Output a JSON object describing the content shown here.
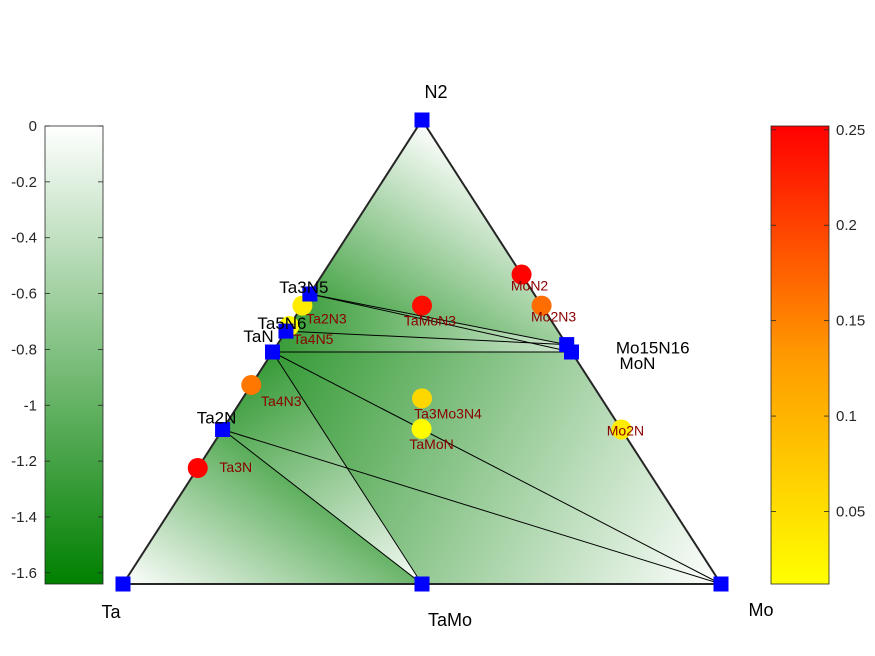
{
  "chart_data": {
    "type": "ternary-phase-diagram",
    "corners": {
      "bottom_left": "Ta",
      "bottom_right": "Mo",
      "top": "N2",
      "bottom_mid": "TaMo"
    },
    "formation_energy_colorbar": {
      "ticks": [
        "0",
        "-0.2",
        "-0.4",
        "-0.6",
        "-0.8",
        "-1",
        "-1.2",
        "-1.4",
        "-1.6"
      ],
      "range": [
        -1.64,
        0
      ],
      "colors": {
        "low": "#008000",
        "high": "#ffffff"
      }
    },
    "hull_distance_colorbar": {
      "ticks": [
        "0.05",
        "0.1",
        "0.15",
        "0.2",
        "0.25"
      ],
      "range": [
        0.012,
        0.252
      ],
      "colors": {
        "low": "#ffff00",
        "high": "#ff0000"
      }
    },
    "colors": {
      "stable_marker": "#0000ff",
      "edge": "#262626",
      "tie_line": "#000000"
    },
    "stable_phases": [
      {
        "name": "N2",
        "x_ta": 0,
        "x_mo": 0,
        "x_n": 1.0,
        "energy": 0
      },
      {
        "name": "Ta",
        "x_ta": 1.0,
        "x_mo": 0,
        "x_n": 0,
        "energy": 0
      },
      {
        "name": "Mo",
        "x_ta": 0,
        "x_mo": 1.0,
        "x_n": 0,
        "energy": 0
      },
      {
        "name": "TaMo",
        "x_ta": 0.5,
        "x_mo": 0.5,
        "x_n": 0,
        "energy": -0.05
      },
      {
        "name": "Ta2N",
        "x_ta": 0.667,
        "x_mo": 0,
        "x_n": 0.333,
        "energy": -1.08
      },
      {
        "name": "TaN",
        "x_ta": 0.5,
        "x_mo": 0,
        "x_n": 0.5,
        "energy": -1.3
      },
      {
        "name": "Ta5N6",
        "x_ta": 0.455,
        "x_mo": 0,
        "x_n": 0.545,
        "energy": -1.28
      },
      {
        "name": "Ta3N5",
        "x_ta": 0.375,
        "x_mo": 0,
        "x_n": 0.625,
        "energy": -1.18
      },
      {
        "name": "MoN",
        "x_ta": 0,
        "x_mo": 0.5,
        "x_n": 0.5,
        "energy": -0.3
      },
      {
        "name": "Mo15N16",
        "x_ta": 0,
        "x_mo": 0.484,
        "x_n": 0.516,
        "energy": -0.3
      }
    ],
    "tie_lines": [
      [
        "Ta3N5",
        "Mo15N16"
      ],
      [
        "Ta3N5",
        "MoN"
      ],
      [
        "Ta5N6",
        "Mo15N16"
      ],
      [
        "TaN",
        "MoN"
      ],
      [
        "TaN",
        "TaMo"
      ],
      [
        "Ta2N",
        "TaMo"
      ],
      [
        "Ta2N",
        "Mo"
      ],
      [
        "TaN",
        "Mo"
      ]
    ],
    "unstable_phases": [
      {
        "name": "MoN2",
        "x_ta": 0,
        "x_mo": 0.333,
        "x_n": 0.667,
        "hull_distance": 0.25
      },
      {
        "name": "Mo2N3",
        "x_ta": 0,
        "x_mo": 0.4,
        "x_n": 0.6,
        "hull_distance": 0.15
      },
      {
        "name": "TaMoN3",
        "x_ta": 0.2,
        "x_mo": 0.2,
        "x_n": 0.6,
        "hull_distance": 0.24
      },
      {
        "name": "Ta2N3",
        "x_ta": 0.4,
        "x_mo": 0,
        "x_n": 0.6,
        "hull_distance": 0.03
      },
      {
        "name": "Ta4N5",
        "x_ta": 0.444,
        "x_mo": 0,
        "x_n": 0.556,
        "hull_distance": 0.015
      },
      {
        "name": "Ta4N3",
        "x_ta": 0.571,
        "x_mo": 0,
        "x_n": 0.429,
        "hull_distance": 0.14
      },
      {
        "name": "Ta3Mo3N4",
        "x_ta": 0.3,
        "x_mo": 0.3,
        "x_n": 0.4,
        "hull_distance": 0.05
      },
      {
        "name": "TaMoN",
        "x_ta": 0.333,
        "x_mo": 0.333,
        "x_n": 0.333,
        "hull_distance": 0.015
      },
      {
        "name": "Mo2N",
        "x_ta": 0,
        "x_mo": 0.667,
        "x_n": 0.333,
        "hull_distance": 0.03
      },
      {
        "name": "Ta3N",
        "x_ta": 0.75,
        "x_mo": 0,
        "x_n": 0.25,
        "hull_distance": 0.25
      }
    ]
  }
}
